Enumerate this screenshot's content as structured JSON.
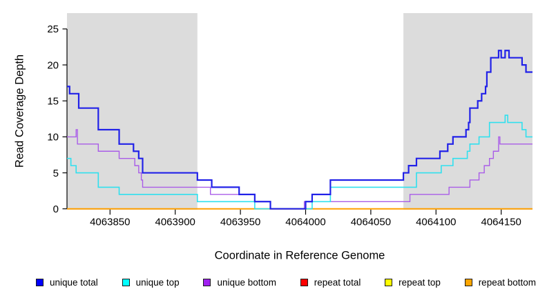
{
  "chart_data": {
    "type": "line",
    "subtype": "step-coverage-plot",
    "title": "",
    "xlabel": "Coordinate in Reference Genome",
    "ylabel": "Read Coverage Depth",
    "xlim": [
      4063817,
      4064174
    ],
    "ylim": [
      0,
      27.2
    ],
    "x_ticks": [
      4063850,
      4063900,
      4063950,
      4064000,
      4064050,
      4064100,
      4064150
    ],
    "y_ticks": [
      0,
      5,
      10,
      15,
      20,
      25
    ],
    "grid": false,
    "legend_position": "bottom",
    "band_color": "#dcdcdc",
    "shaded_regions": [
      {
        "from": 4063817,
        "to": 4063917
      },
      {
        "from": 4064075,
        "to": 4064174
      }
    ],
    "series": [
      {
        "name": "unique total",
        "line_color": "#2121e8",
        "swatch_color": "#0000ff",
        "width": 2.2,
        "points": [
          [
            4063817,
            17
          ],
          [
            4063819,
            16
          ],
          [
            4063826,
            14
          ],
          [
            4063841,
            11
          ],
          [
            4063857,
            9
          ],
          [
            4063868,
            8
          ],
          [
            4063872,
            7
          ],
          [
            4063875,
            5
          ],
          [
            4063917,
            4
          ],
          [
            4063928,
            3
          ],
          [
            4063949,
            2
          ],
          [
            4063961,
            1
          ],
          [
            4063973,
            0
          ],
          [
            4064000,
            1
          ],
          [
            4064005,
            2
          ],
          [
            4064019,
            4
          ],
          [
            4064075,
            5
          ],
          [
            4064079,
            6
          ],
          [
            4064085,
            7
          ],
          [
            4064103,
            8
          ],
          [
            4064109,
            9
          ],
          [
            4064113,
            10
          ],
          [
            4064123,
            11
          ],
          [
            4064125,
            12
          ],
          [
            4064126,
            14
          ],
          [
            4064132,
            15
          ],
          [
            4064135,
            16
          ],
          [
            4064138,
            17
          ],
          [
            4064139,
            19
          ],
          [
            4064142,
            21
          ],
          [
            4064148,
            22
          ],
          [
            4064150,
            21
          ],
          [
            4064153,
            22
          ],
          [
            4064156,
            21
          ],
          [
            4064166,
            20
          ],
          [
            4064169,
            19
          ],
          [
            4064174,
            19
          ]
        ]
      },
      {
        "name": "unique top",
        "line_color": "#2fe0ee",
        "swatch_color": "#00ffff",
        "width": 1.6,
        "points": [
          [
            4063817,
            7
          ],
          [
            4063820,
            6
          ],
          [
            4063824,
            5
          ],
          [
            4063841,
            3
          ],
          [
            4063857,
            2
          ],
          [
            4063917,
            1
          ],
          [
            4063961,
            0
          ],
          [
            4064005,
            1
          ],
          [
            4064019,
            3
          ],
          [
            4064085,
            5
          ],
          [
            4064104,
            6
          ],
          [
            4064113,
            7
          ],
          [
            4064124,
            8
          ],
          [
            4064126,
            9
          ],
          [
            4064133,
            10
          ],
          [
            4064141,
            12
          ],
          [
            4064153,
            13
          ],
          [
            4064155,
            12
          ],
          [
            4064166,
            11
          ],
          [
            4064169,
            10
          ],
          [
            4064174,
            10
          ]
        ]
      },
      {
        "name": "unique bottom",
        "line_color": "#a95ce8",
        "swatch_color": "#a020f0",
        "width": 1.4,
        "points": [
          [
            4063817,
            10
          ],
          [
            4063824,
            11
          ],
          [
            4063825,
            9
          ],
          [
            4063841,
            8
          ],
          [
            4063857,
            7
          ],
          [
            4063869,
            6
          ],
          [
            4063872,
            5
          ],
          [
            4063874,
            4
          ],
          [
            4063875,
            3
          ],
          [
            4063927,
            2
          ],
          [
            4063961,
            1
          ],
          [
            4063973,
            0
          ],
          [
            4063999,
            1
          ],
          [
            4064080,
            2
          ],
          [
            4064110,
            3
          ],
          [
            4064126,
            4
          ],
          [
            4064133,
            5
          ],
          [
            4064137,
            6
          ],
          [
            4064141,
            7
          ],
          [
            4064144,
            8
          ],
          [
            4064148,
            10
          ],
          [
            4064149,
            9
          ],
          [
            4064174,
            9
          ]
        ]
      },
      {
        "name": "repeat total",
        "line_color": "#ee1111",
        "swatch_color": "#ff0000",
        "width": 1.5,
        "points": [
          [
            4063817,
            0
          ],
          [
            4064174,
            0
          ]
        ]
      },
      {
        "name": "repeat top",
        "line_color": "#ffff00",
        "swatch_color": "#ffff00",
        "width": 1.5,
        "points": [
          [
            4063817,
            0
          ],
          [
            4064174,
            0
          ]
        ]
      },
      {
        "name": "repeat bottom",
        "line_color": "#ff9f00",
        "swatch_color": "#ffa500",
        "width": 2,
        "points": [
          [
            4063817,
            0
          ],
          [
            4064174,
            0
          ]
        ]
      }
    ]
  }
}
